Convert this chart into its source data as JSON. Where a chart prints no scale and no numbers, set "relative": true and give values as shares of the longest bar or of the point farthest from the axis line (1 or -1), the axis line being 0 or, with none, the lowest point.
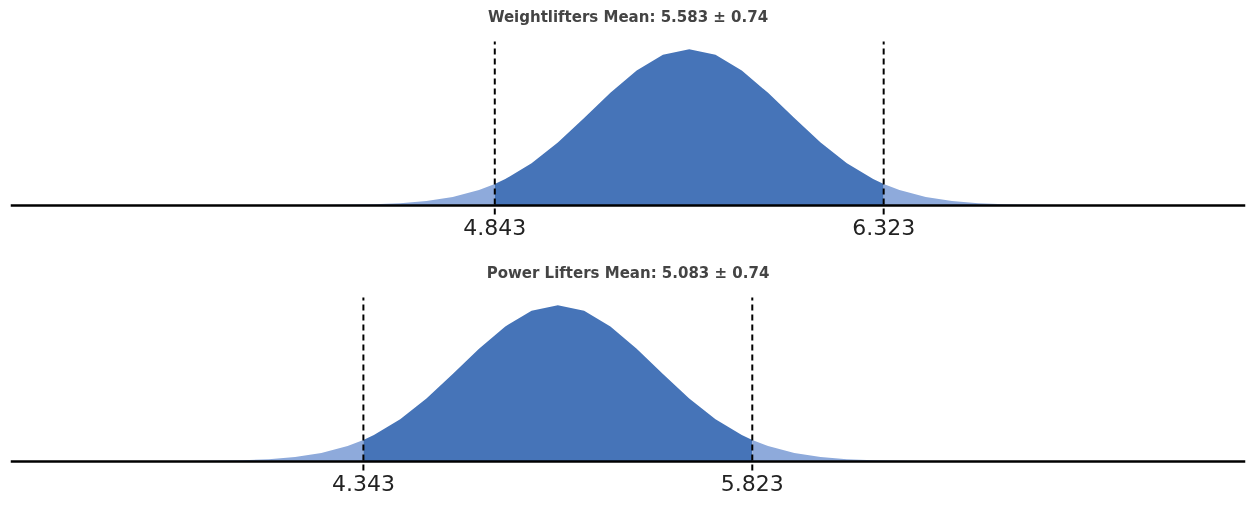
{
  "chart_data": [
    {
      "type": "area",
      "title": "Weightlifters Mean: 5.583 ± 0.74",
      "relative": true,
      "xlim": [
        3.0,
        7.7
      ],
      "xticks": [
        4.843,
        6.323
      ],
      "series": [
        {
          "color": "#8eaadb",
          "x": [
            3.0,
            3.983,
            4.183,
            4.383,
            4.483,
            4.583,
            4.683,
            4.783,
            4.843
          ],
          "values": [
            0,
            0,
            0.001,
            0.005,
            0.012,
            0.026,
            0.052,
            0.097,
            0.135
          ]
        },
        {
          "color": "#4674b8",
          "x": [
            4.843,
            4.883,
            4.983,
            5.083,
            5.183,
            5.283,
            5.383,
            5.483,
            5.583,
            5.683,
            5.783,
            5.883,
            5.983,
            6.083,
            6.183,
            6.283,
            6.323
          ],
          "values": [
            0.135,
            0.167,
            0.268,
            0.401,
            0.558,
            0.72,
            0.864,
            0.964,
            1,
            0.964,
            0.864,
            0.72,
            0.558,
            0.401,
            0.268,
            0.167,
            0.135
          ]
        },
        {
          "color": "#8eaadb",
          "x": [
            6.323,
            6.383,
            6.483,
            6.583,
            6.683,
            6.783,
            6.983,
            7.183,
            7.7
          ],
          "values": [
            0.135,
            0.097,
            0.052,
            0.026,
            0.012,
            0.005,
            0.001,
            0,
            0
          ]
        }
      ],
      "ref_lines": [
        {
          "axis": "x",
          "value": 4.843,
          "line_style": "dashed",
          "color": "#000000"
        },
        {
          "axis": "x",
          "value": 6.323,
          "line_style": "dashed",
          "color": "#000000"
        }
      ]
    },
    {
      "type": "area",
      "title": "Power Lifters Mean: 5.083 ± 0.74",
      "relative": true,
      "xlim": [
        3.0,
        7.7
      ],
      "xticks": [
        4.343,
        5.823
      ],
      "series": [
        {
          "color": "#8eaadb",
          "x": [
            3.0,
            3.483,
            3.683,
            3.883,
            3.983,
            4.083,
            4.183,
            4.283,
            4.343
          ],
          "values": [
            0,
            0,
            0.001,
            0.005,
            0.012,
            0.026,
            0.052,
            0.097,
            0.135
          ]
        },
        {
          "color": "#4674b8",
          "x": [
            4.343,
            4.383,
            4.483,
            4.583,
            4.683,
            4.783,
            4.883,
            4.983,
            5.083,
            5.183,
            5.283,
            5.383,
            5.483,
            5.583,
            5.683,
            5.783,
            5.823
          ],
          "values": [
            0.135,
            0.167,
            0.268,
            0.401,
            0.558,
            0.72,
            0.864,
            0.964,
            1,
            0.964,
            0.864,
            0.72,
            0.558,
            0.401,
            0.268,
            0.167,
            0.135
          ]
        },
        {
          "color": "#8eaadb",
          "x": [
            5.823,
            5.883,
            5.983,
            6.083,
            6.183,
            6.283,
            6.483,
            6.683,
            7.7
          ],
          "values": [
            0.135,
            0.097,
            0.052,
            0.026,
            0.012,
            0.005,
            0.001,
            0,
            0
          ]
        }
      ],
      "ref_lines": [
        {
          "axis": "x",
          "value": 4.343,
          "line_style": "dashed",
          "color": "#000000"
        },
        {
          "axis": "x",
          "value": 5.823,
          "line_style": "dashed",
          "color": "#000000"
        }
      ]
    }
  ]
}
